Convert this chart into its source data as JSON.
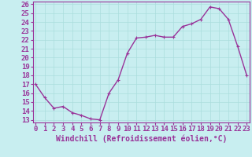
{
  "x": [
    0,
    1,
    2,
    3,
    4,
    5,
    6,
    7,
    8,
    9,
    10,
    11,
    12,
    13,
    14,
    15,
    16,
    17,
    18,
    19,
    20,
    21,
    22,
    23
  ],
  "y": [
    17.0,
    15.5,
    14.3,
    14.5,
    13.8,
    13.5,
    13.1,
    13.0,
    16.0,
    17.5,
    20.5,
    22.2,
    22.3,
    22.5,
    22.3,
    22.3,
    23.5,
    23.8,
    24.3,
    25.7,
    25.5,
    24.3,
    21.3,
    18.0
  ],
  "line_color": "#993399",
  "marker_color": "#993399",
  "bg_color": "#c8eef0",
  "grid_color": "#aadddd",
  "xlabel": "Windchill (Refroidissement éolien,°C)",
  "ylim_min": 13,
  "ylim_max": 26,
  "xlim_min": 0,
  "xlim_max": 23,
  "yticks": [
    13,
    14,
    15,
    16,
    17,
    18,
    19,
    20,
    21,
    22,
    23,
    24,
    25,
    26
  ],
  "xticks": [
    0,
    1,
    2,
    3,
    4,
    5,
    6,
    7,
    8,
    9,
    10,
    11,
    12,
    13,
    14,
    15,
    16,
    17,
    18,
    19,
    20,
    21,
    22,
    23
  ],
  "xlabel_fontsize": 7,
  "tick_fontsize": 6.5,
  "line_width": 1.0,
  "marker_size": 2.5
}
